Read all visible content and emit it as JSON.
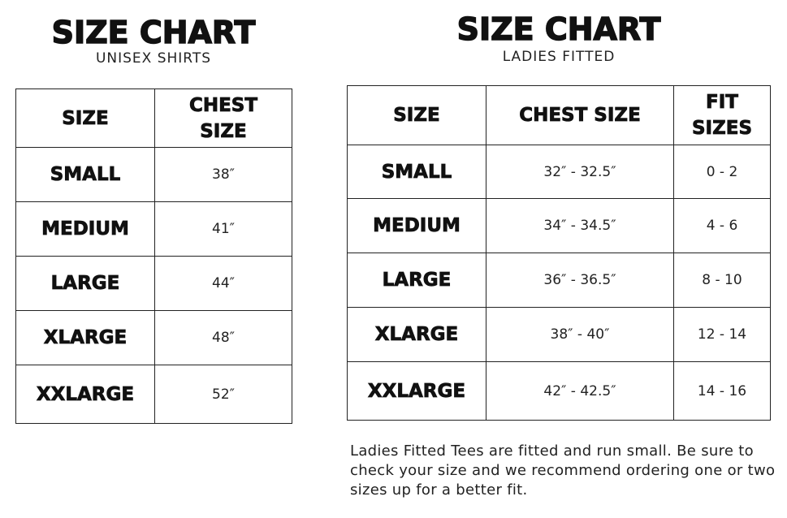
{
  "unisex": {
    "title": "SIZE CHART",
    "subtitle": "UNISEX SHIRTS",
    "headers": [
      "SIZE",
      "CHEST SIZE"
    ],
    "rows": [
      {
        "size": "SMALL",
        "chest": "38″"
      },
      {
        "size": "MEDIUM",
        "chest": "41″"
      },
      {
        "size": "LARGE",
        "chest": "44″"
      },
      {
        "size": "XLARGE",
        "chest": "48″"
      },
      {
        "size": "XXLARGE",
        "chest": "52″"
      }
    ]
  },
  "ladies": {
    "title": "SIZE CHART",
    "subtitle": "LADIES FITTED",
    "headers": [
      "SIZE",
      "CHEST SIZE",
      "FIT SIZES"
    ],
    "rows": [
      {
        "size": "SMALL",
        "chest": "32″ - 32.5″",
        "fit": "0 - 2"
      },
      {
        "size": "MEDIUM",
        "chest": "34″ - 34.5″",
        "fit": "4 - 6"
      },
      {
        "size": "LARGE",
        "chest": "36″ - 36.5″",
        "fit": "8 - 10"
      },
      {
        "size": "XLARGE",
        "chest": "38″ - 40″",
        "fit": "12 - 14"
      },
      {
        "size": "XXLARGE",
        "chest": "42″ - 42.5″",
        "fit": "14 - 16"
      }
    ],
    "note": "Ladies Fitted Tees are fitted and run small. Be sure to check your size and we recommend ordering one or two sizes up for a better fit."
  }
}
